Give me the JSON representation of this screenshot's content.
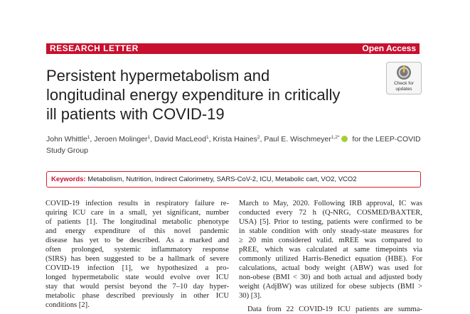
{
  "banner": {
    "left": "RESEARCH LETTER",
    "right": "Open Access"
  },
  "title": [
    "Persistent hypermetabolism and",
    "longitudinal energy expenditure in critically",
    "ill patients with COVID-19"
  ],
  "badge": {
    "line1": "Check for",
    "line2": "updates"
  },
  "authors": {
    "a1": "John Whittle",
    "s1": "1",
    "a2": ", Jeroen Molinger",
    "s2": "1",
    "a3": ", David MacLeod",
    "s3": "1",
    "a4": ", Krista Haines",
    "s4": "2",
    "a5": ", Paul E. Wischmeyer",
    "s5": "1,2*",
    "a6": " for the LEEP-COVID",
    "line2": "Study Group"
  },
  "keywords": {
    "label": "Keywords:",
    "text": " Metabolism, Nutrition, Indirect Calorimetry, SARS-CoV-2, ICU, Metabolic cart, VO2, VCO2"
  },
  "left_column": [
    "COVID-19 infection results in respiratory failure re-",
    "quiring ICU care in a small, yet significant, number",
    "of patients [1]. The longitudinal metabolic phenotype",
    "and energy expenditure of this novel pandemic",
    "disease has yet to be described. As a marked and",
    "often prolonged, systemic inflammatory response",
    "(SIRS) has been suggested to be a hallmark of severe",
    "COVID-19 infection [1], we hypothesized a pro-",
    "longed hypermetabolic state would evolve over ICU",
    "stay that would persist beyond the 7–10 day hyper-",
    "metabolic phase described previously in other ICU",
    "conditions [2]."
  ],
  "right_column": [
    "March to May, 2020. Following IRB approval, IC was",
    "conducted every 72 h (Q-NRG, COSMED/BAXTER,",
    "USA) [5]. Prior to testing, patients were confirmed to be",
    "in stable condition with only steady-state measures for",
    "≥ 20 min considered valid. mREE was compared to",
    "pREE, which was calculated at same timepoints via",
    "commonly utilized Harris-Benedict equation (HBE). For",
    "calculations, actual body weight (ABW) was used for",
    "non-obese (BMI < 30) and both actual and adjusted body",
    "weight (AdjBW) was utilized for obese subjects (BMI >",
    "30) [3]."
  ],
  "right_next": "Data from 22 COVID-19 ICU patients are summa-"
}
